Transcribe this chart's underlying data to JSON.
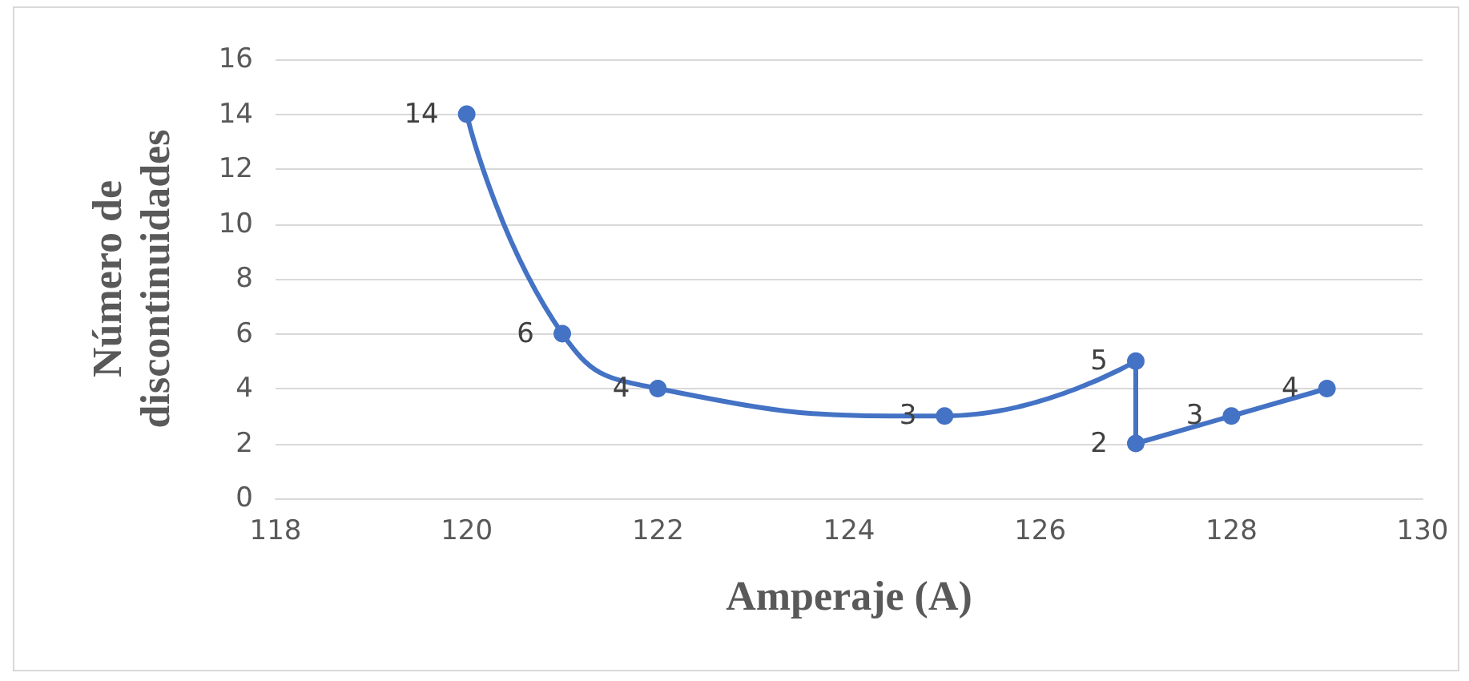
{
  "chart_data": {
    "type": "line",
    "xlabel": "Amperaje (A)",
    "ylabel": "Número de\ndiscontinuidades",
    "x": [
      120,
      121,
      122,
      125,
      127,
      127,
      128,
      129
    ],
    "series": [
      {
        "color": "#4472c4",
        "values": [
          14,
          6,
          4,
          3,
          5,
          2,
          3,
          4
        ]
      }
    ],
    "xlim": [
      118,
      130
    ],
    "xticks": [
      118,
      120,
      122,
      124,
      126,
      128,
      130
    ],
    "ylim": [
      0,
      16
    ],
    "yticks": [
      0,
      2,
      4,
      6,
      8,
      10,
      12,
      14,
      16
    ],
    "grid": "y",
    "marker": "circle",
    "line_style": "solid",
    "data_labels": true
  }
}
